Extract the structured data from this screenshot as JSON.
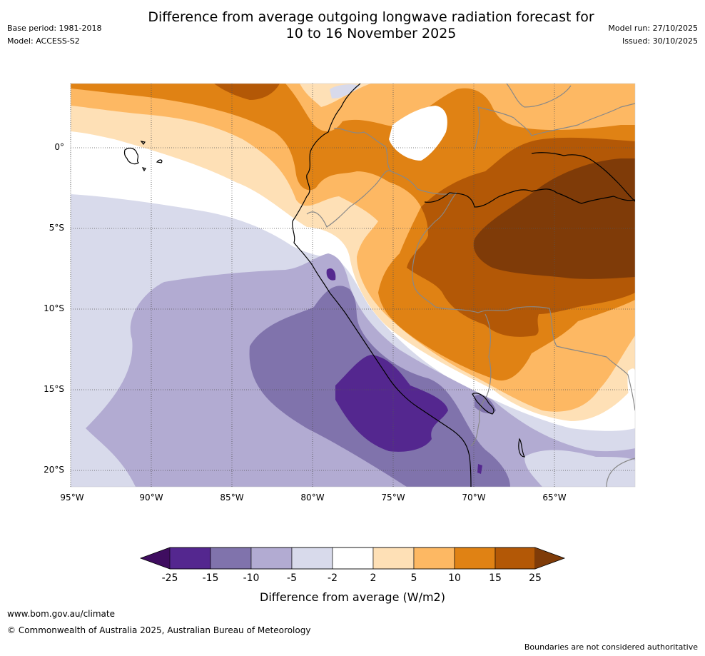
{
  "title": {
    "line1": "Difference from average outgoing longwave radiation forecast for",
    "line2": "10 to 16 November 2025"
  },
  "meta": {
    "base_period": "Base period: 1981-2018",
    "model": "Model: ACCESS-S2",
    "model_run": "Model run: 27/10/2025",
    "issued": "Issued: 30/10/2025"
  },
  "axes": {
    "lat_labels": [
      "0°",
      "5°S",
      "10°S",
      "15°S",
      "20°S"
    ],
    "lon_labels": [
      "95°W",
      "90°W",
      "85°W",
      "80°W",
      "75°W",
      "70°W",
      "65°W"
    ]
  },
  "colorbar": {
    "ticks": [
      "-25",
      "-15",
      "-10",
      "-5",
      "-2",
      "2",
      "5",
      "10",
      "15",
      "25"
    ],
    "colors": [
      "#3f0d60",
      "#54278f",
      "#8073ac",
      "#b2abd2",
      "#d8daeb",
      "#ffffff",
      "#fee0b6",
      "#fdb863",
      "#e08214",
      "#b35806",
      "#7f3b08"
    ],
    "label": "Difference from average (W/m2)"
  },
  "footer": {
    "url": "www.bom.gov.au/climate",
    "copyright": "© Commonwealth of Australia 2025, Australian Bureau of Meteorology",
    "disclaimer": "Boundaries are not considered authoritative"
  }
}
